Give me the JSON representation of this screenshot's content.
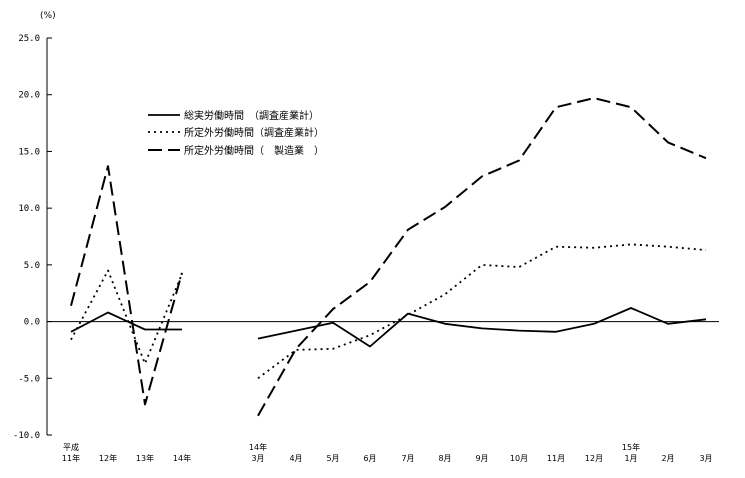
{
  "chart_data": {
    "type": "line",
    "unit_label": "(%)",
    "ylim": [
      -10.0,
      25.0
    ],
    "yticks": [
      "25.0",
      "20.0",
      "15.0",
      "10.0",
      "5.0",
      "0.0",
      "-5.0",
      "-10.0"
    ],
    "ytick_values": [
      25,
      20,
      15,
      10,
      5,
      0,
      -5,
      -10
    ],
    "grid": false,
    "legend_position": "upper-left",
    "categories": [
      {
        "top": "平成",
        "bottom": "11年"
      },
      {
        "top": "",
        "bottom": "12年"
      },
      {
        "top": "",
        "bottom": "13年"
      },
      {
        "top": "",
        "bottom": "14年"
      },
      {
        "top": "14年",
        "bottom": "3月"
      },
      {
        "top": "",
        "bottom": "4月"
      },
      {
        "top": "",
        "bottom": "5月"
      },
      {
        "top": "",
        "bottom": "6月"
      },
      {
        "top": "",
        "bottom": "7月"
      },
      {
        "top": "",
        "bottom": "8月"
      },
      {
        "top": "",
        "bottom": "9月"
      },
      {
        "top": "",
        "bottom": "10月"
      },
      {
        "top": "",
        "bottom": "11月"
      },
      {
        "top": "",
        "bottom": "12月"
      },
      {
        "top": "15年",
        "bottom": "1月"
      },
      {
        "top": "",
        "bottom": "2月"
      },
      {
        "top": "",
        "bottom": "3月"
      }
    ],
    "segments": [
      [
        0,
        3
      ],
      [
        4,
        16
      ]
    ],
    "series": [
      {
        "name": "総実労働時間　（調査産業計）",
        "style": "solid",
        "color": "#000000",
        "values": [
          -0.9,
          0.8,
          -0.7,
          -0.7,
          -1.5,
          -0.8,
          -0.1,
          -2.2,
          0.7,
          -0.2,
          -0.6,
          -0.8,
          -0.9,
          -0.2,
          1.2,
          -0.2,
          0.2
        ]
      },
      {
        "name": "所定外労働時間（調査産業計）",
        "style": "dotted",
        "color": "#000000",
        "values": [
          -1.6,
          4.5,
          -3.7,
          4.2,
          -5.0,
          -2.5,
          -2.4,
          -1.2,
          0.6,
          2.4,
          5.0,
          4.8,
          6.6,
          6.5,
          6.8,
          6.6,
          6.3
        ]
      },
      {
        "name": "所定外労働時間（　製造業　）",
        "style": "dashed",
        "color": "#000000",
        "values": [
          1.4,
          13.7,
          -7.3,
          4.3,
          -8.3,
          -2.4,
          1.1,
          3.5,
          8.1,
          10.1,
          12.8,
          14.2,
          18.9,
          19.7,
          18.9,
          15.8,
          14.4
        ]
      }
    ]
  }
}
